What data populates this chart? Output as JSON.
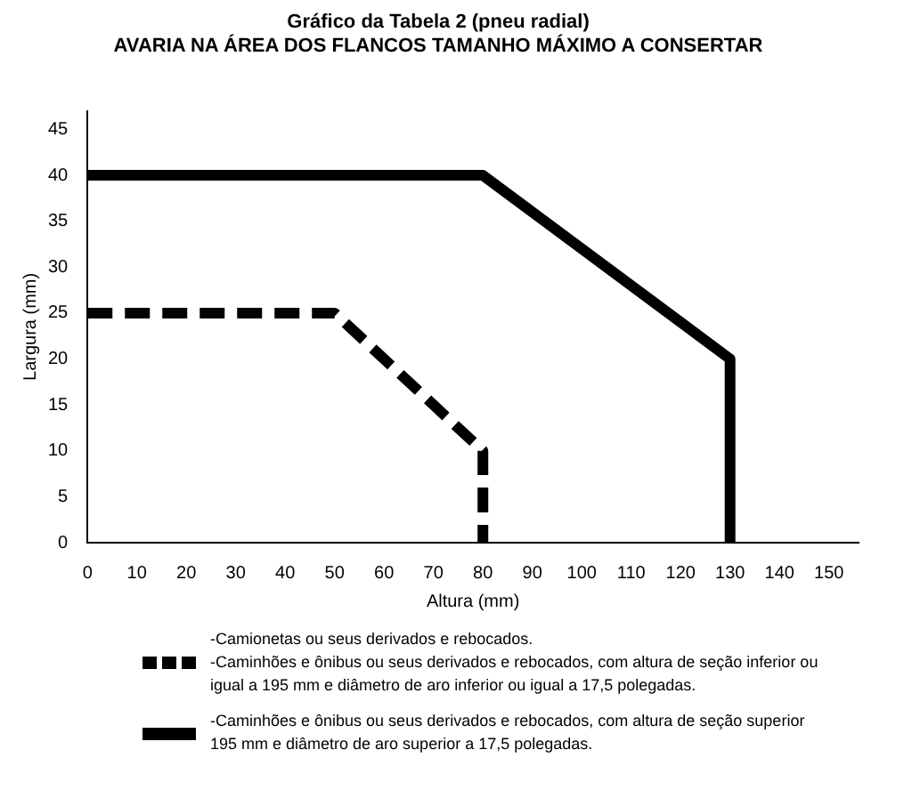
{
  "chart_data": {
    "type": "line",
    "title": "Gráfico da Tabela 2 (pneu radial)",
    "subtitle": "AVARIA NA ÁREA DOS FLANCOS TAMANHO MÁXIMO A CONSERTAR",
    "xlabel": "Altura (mm)",
    "ylabel": "Largura (mm)",
    "xlim": [
      0,
      156
    ],
    "xticks": [
      0,
      10,
      20,
      30,
      40,
      50,
      60,
      70,
      80,
      90,
      100,
      110,
      120,
      130,
      140,
      150
    ],
    "ylim": [
      0,
      47
    ],
    "yticks": [
      0,
      5,
      10,
      15,
      20,
      25,
      30,
      35,
      40,
      45
    ],
    "grid": false,
    "legend": "bottom",
    "marker": "none",
    "series": [
      {
        "name": "-Camionetas ou seus derivados e rebocados.\n-Caminhões e ônibus ou seus derivados e rebocados, com altura de seção inferior ou igual a 195 mm e diâmetro de aro inferior ou igual a 17,5 polegadas.",
        "color": "#000000",
        "line_style": "dashed",
        "x": [
          0,
          50,
          80,
          80
        ],
        "values": [
          25,
          25,
          10,
          0
        ]
      },
      {
        "name": "-Caminhões e ônibus ou seus derivados e rebocados, com altura de seção superior 195 mm e diâmetro de aro superior a 17,5 polegadas.",
        "color": "#000000",
        "line_style": "solid",
        "x": [
          0,
          80,
          130,
          130
        ],
        "values": [
          40,
          40,
          20,
          0
        ]
      }
    ]
  }
}
